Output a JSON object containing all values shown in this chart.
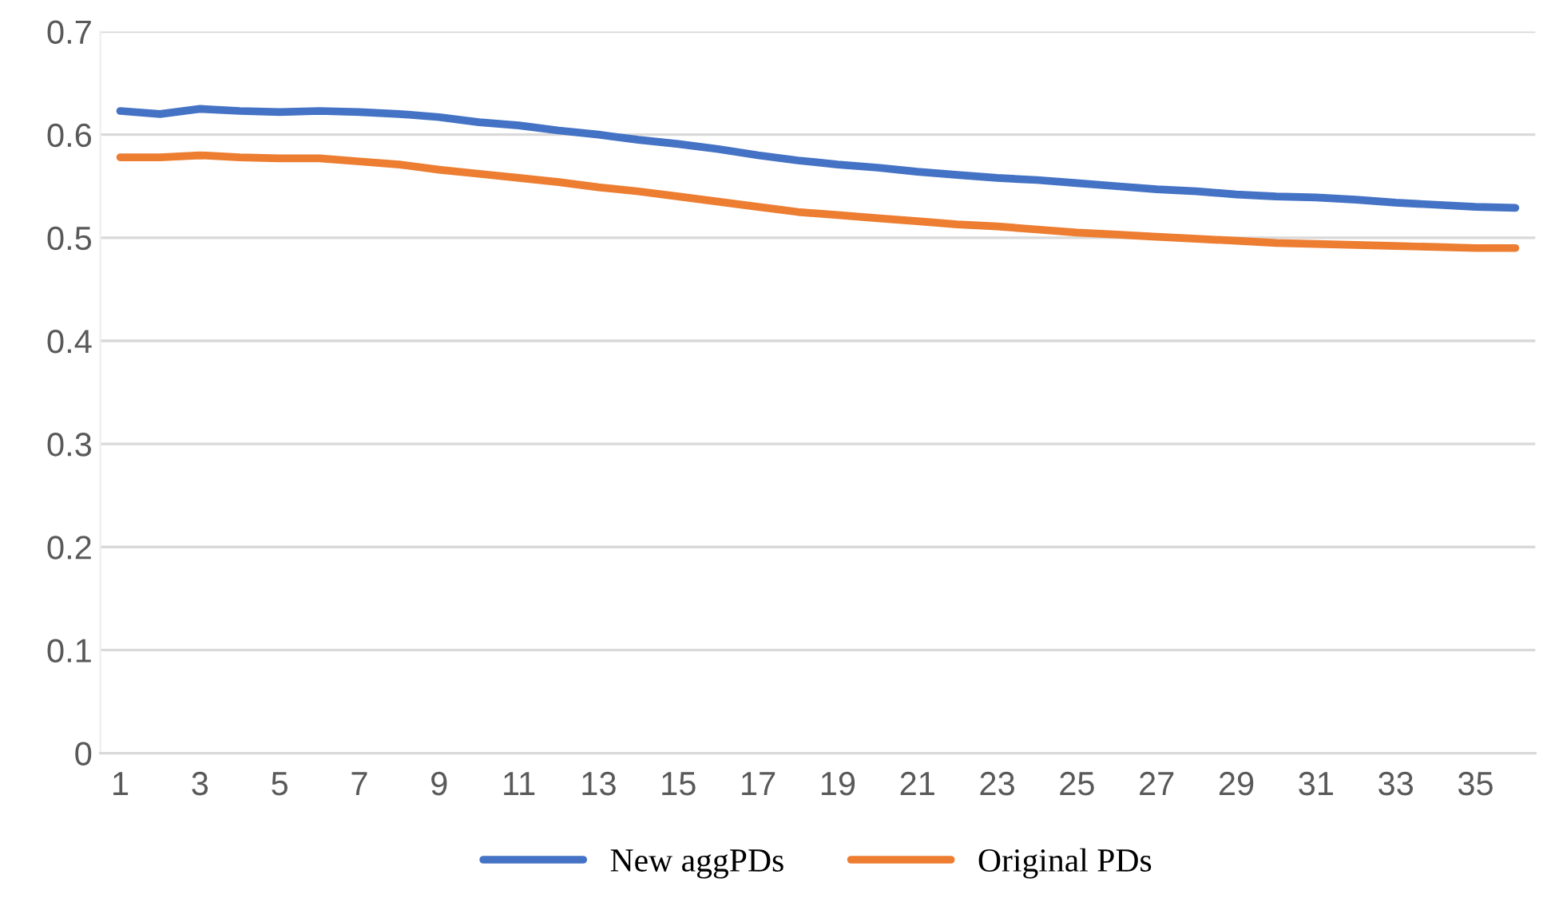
{
  "chart_data": {
    "type": "line",
    "categories": [
      "1",
      null,
      "3",
      null,
      "5",
      null,
      "7",
      null,
      "9",
      null,
      "11",
      null,
      "13",
      null,
      "15",
      null,
      "17",
      null,
      "19",
      null,
      "21",
      null,
      "23",
      null,
      "25",
      null,
      "27",
      null,
      "29",
      null,
      "31",
      null,
      "33",
      null,
      "35",
      null
    ],
    "series": [
      {
        "name": "New aggPDs",
        "color": "#4472c4",
        "values": [
          0.623,
          0.62,
          0.625,
          0.623,
          0.622,
          0.623,
          0.622,
          0.62,
          0.617,
          0.612,
          0.609,
          0.604,
          0.6,
          0.595,
          0.591,
          0.586,
          0.58,
          0.575,
          0.571,
          0.568,
          0.564,
          0.561,
          0.558,
          0.556,
          0.553,
          0.55,
          0.547,
          0.545,
          0.542,
          0.54,
          0.539,
          0.537,
          0.534,
          0.532,
          0.53,
          0.529
        ]
      },
      {
        "name": "Original PDs",
        "color": "#ed7d31",
        "values": [
          0.578,
          0.578,
          0.58,
          0.578,
          0.577,
          0.577,
          0.574,
          0.571,
          0.566,
          0.562,
          0.558,
          0.554,
          0.549,
          0.545,
          0.54,
          0.535,
          0.53,
          0.525,
          0.522,
          0.519,
          0.516,
          0.513,
          0.511,
          0.508,
          0.505,
          0.503,
          0.501,
          0.499,
          0.497,
          0.495,
          0.494,
          0.493,
          0.492,
          0.491,
          0.49,
          0.49
        ]
      }
    ],
    "ylim": [
      0,
      0.7
    ],
    "yticks": [
      0,
      0.1,
      0.2,
      0.3,
      0.4,
      0.5,
      0.6,
      0.7
    ],
    "grid": "y",
    "legend": "bottom",
    "marker": "none",
    "line_style": "solid"
  }
}
